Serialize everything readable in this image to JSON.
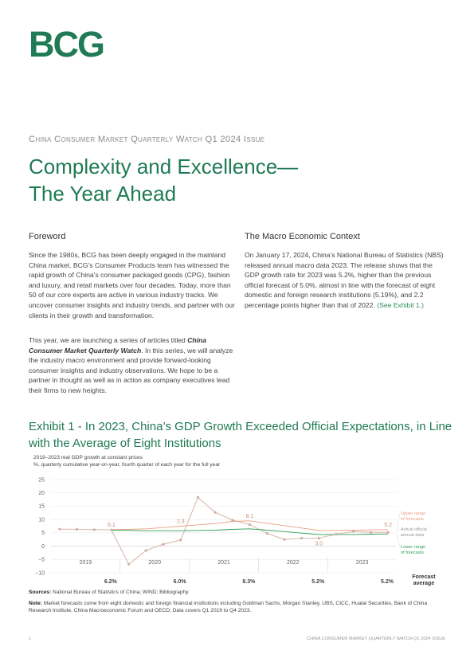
{
  "header": {
    "logo_text": "BCG",
    "kicker": "China Consumer Market Quarterly Watch Q1 2024 Issue",
    "title_line1": "Complexity and Excellence—",
    "title_line2": "The Year Ahead"
  },
  "foreword": {
    "heading": "Foreword",
    "p1": "Since the 1980s, BCG has been deeply engaged in the mainland China market. BCG’s Consumer Products team has witnessed the rapid growth of China’s consumer packaged goods (CPG), fashion and luxury, and retail markets over four decades. Today, more than 50 of our core experts are active in various industry tracks. We uncover consumer insights and industry trends, and partner with our clients in their growth and transformation.",
    "p2_pre": "This year, we are launching a series of articles titled ",
    "p2_em": "China Consumer Market Quarterly Watch",
    "p2_post": ". In this series, we will analyze the industry macro environment and provide forward-looking consumer insights and industry observations. We hope to be a partner in thought as well as in action as company executives lead their firms to new heights."
  },
  "macro": {
    "heading": "The Macro Economic Context",
    "p1": "On January 17, 2024, China’s National Bureau of Statistics (NBS) released annual macro data 2023. The release shows that the GDP growth rate for 2023 was 5.2%, higher than the previous official forecast of 5.0%, almost in line with the forecast of eight domestic and foreign research institutions (5.19%), and 2.2 percentage points higher than that of 2022.",
    "link": "(See Exhibit 1.)"
  },
  "exhibit": {
    "title": "Exhibit 1 - In 2023, China’s GDP Growth Exceeded Official Expectations, in Line with the Average of Eight Institutions",
    "subtitle1": "2019–2023 real GDP growth at constant prices",
    "subtitle2": "%, quarterly cumulative year-on-year, fourth quarter of each year for the full year",
    "sources_label": "Sources:",
    "sources_text": " National Bureau of Statistics of China; WIND; Bibliography.",
    "note_label": "Note:",
    "note_text": " Market forecasts come from eight domestic and foreign financial institutions including Goldman Sachs, Morgan Stanley, UBS, CICC, Huatai Securities, Bank of China Research Institute, China Macroeconomic Forum and OECD; Data covers Q1 2019 to Q4 2023."
  },
  "colors": {
    "brand_green": "#1f7a55",
    "upper_range": "#e8a184",
    "actual": "#d8bcb0",
    "lower_range": "#2e9e57"
  },
  "chart_data": {
    "type": "line",
    "title": "",
    "subtitle": "2019–2023 real GDP growth at constant prices",
    "ylabel": "%, quarterly cumulative year-on-year, fourth quarter of each year for the full year",
    "ylim": [
      -10,
      25
    ],
    "yticks": [
      "25",
      "20",
      "15",
      "10",
      "5",
      "0",
      "−5",
      "−10"
    ],
    "years": [
      "2019",
      "2020",
      "2021",
      "2022",
      "2023"
    ],
    "quarters_per_year": 4,
    "series": [
      {
        "name": "Actual official annual data",
        "values": [
          6.4,
          6.3,
          6.2,
          6.1,
          -6.8,
          -1.6,
          0.7,
          2.3,
          18.3,
          12.7,
          9.8,
          8.1,
          4.8,
          2.5,
          3.0,
          3.0,
          4.5,
          5.5,
          5.2,
          5.2
        ]
      },
      {
        "name": "Upper range of forecasts",
        "values": [
          null,
          null,
          null,
          6.2,
          6.3,
          6.5,
          7.0,
          7.5,
          8.0,
          8.5,
          9.3,
          9.5,
          8.6,
          7.7,
          6.8,
          5.9,
          5.9,
          6.0,
          6.1,
          6.2
        ]
      },
      {
        "name": "Lower range of forecasts",
        "values": [
          null,
          null,
          null,
          6.0,
          5.9,
          5.8,
          5.8,
          5.8,
          5.9,
          6.0,
          6.3,
          6.5,
          6.0,
          5.5,
          4.9,
          4.4,
          4.4,
          4.4,
          4.5,
          4.6
        ]
      }
    ],
    "value_labels": [
      {
        "index": 3,
        "text": "6.1"
      },
      {
        "index": 7,
        "text": "2.3"
      },
      {
        "index": 11,
        "text": "8.1"
      },
      {
        "index": 15,
        "text": "3.0"
      },
      {
        "index": 19,
        "text": "5.2"
      }
    ],
    "legend": {
      "upper": [
        "Upper range",
        "of forecasts"
      ],
      "actual": [
        "Actual official",
        "annual data"
      ],
      "lower": [
        "Lower range",
        "of forecasts"
      ]
    },
    "forecast_average": {
      "label": [
        "Forecast",
        "average"
      ],
      "values": [
        "6.2%",
        "6.0%",
        "8.3%",
        "5.2%",
        "5.2%"
      ]
    }
  },
  "footer": {
    "page_number": "1",
    "running_title": "China Consumer Market Quarterly Watch Q1 2024 Issue"
  }
}
